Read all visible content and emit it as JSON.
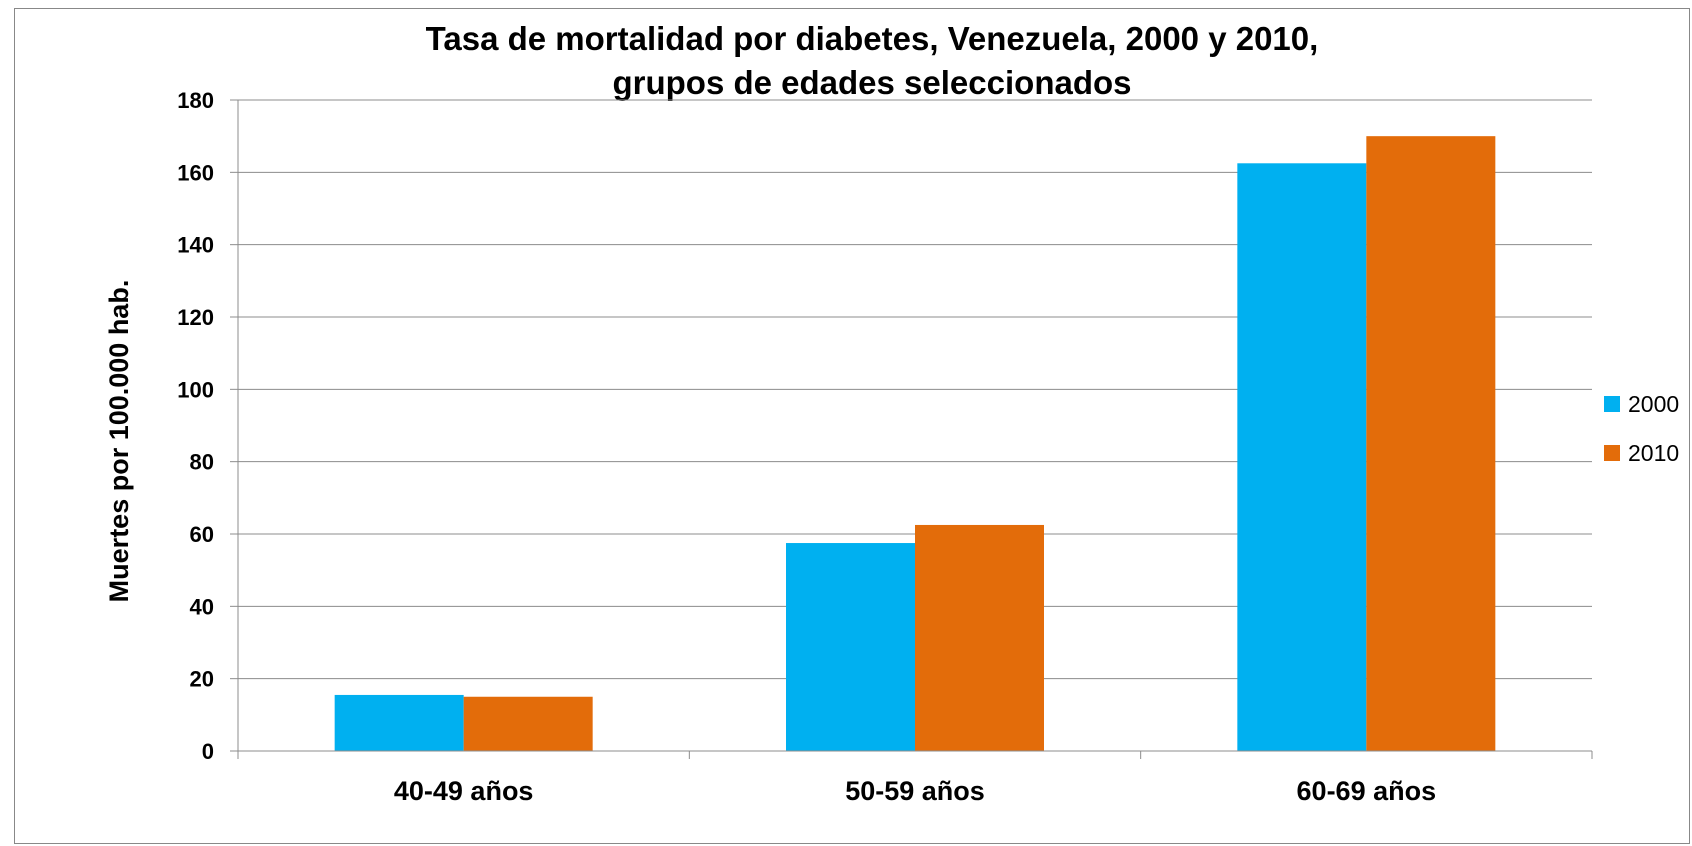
{
  "chart_data": {
    "type": "bar",
    "title": "Tasa de mortalidad por diabetes, Venezuela, 2000 y 2010,",
    "subtitle": "grupos de edades seleccionados",
    "xlabel": "",
    "ylabel": "Muertes por 100.000 hab.",
    "ylim": [
      0,
      180
    ],
    "yticks": [
      0,
      20,
      40,
      60,
      80,
      100,
      120,
      140,
      160,
      180
    ],
    "grid": true,
    "legend_position": "right",
    "categories": [
      "40-49 años",
      "50-59 años",
      "60-69 años"
    ],
    "series": [
      {
        "name": "2000",
        "color": "#00B0F0",
        "values": [
          15.5,
          57.5,
          162.5
        ]
      },
      {
        "name": "2010",
        "color": "#E36C0A",
        "values": [
          15,
          62.5,
          170
        ]
      }
    ]
  }
}
